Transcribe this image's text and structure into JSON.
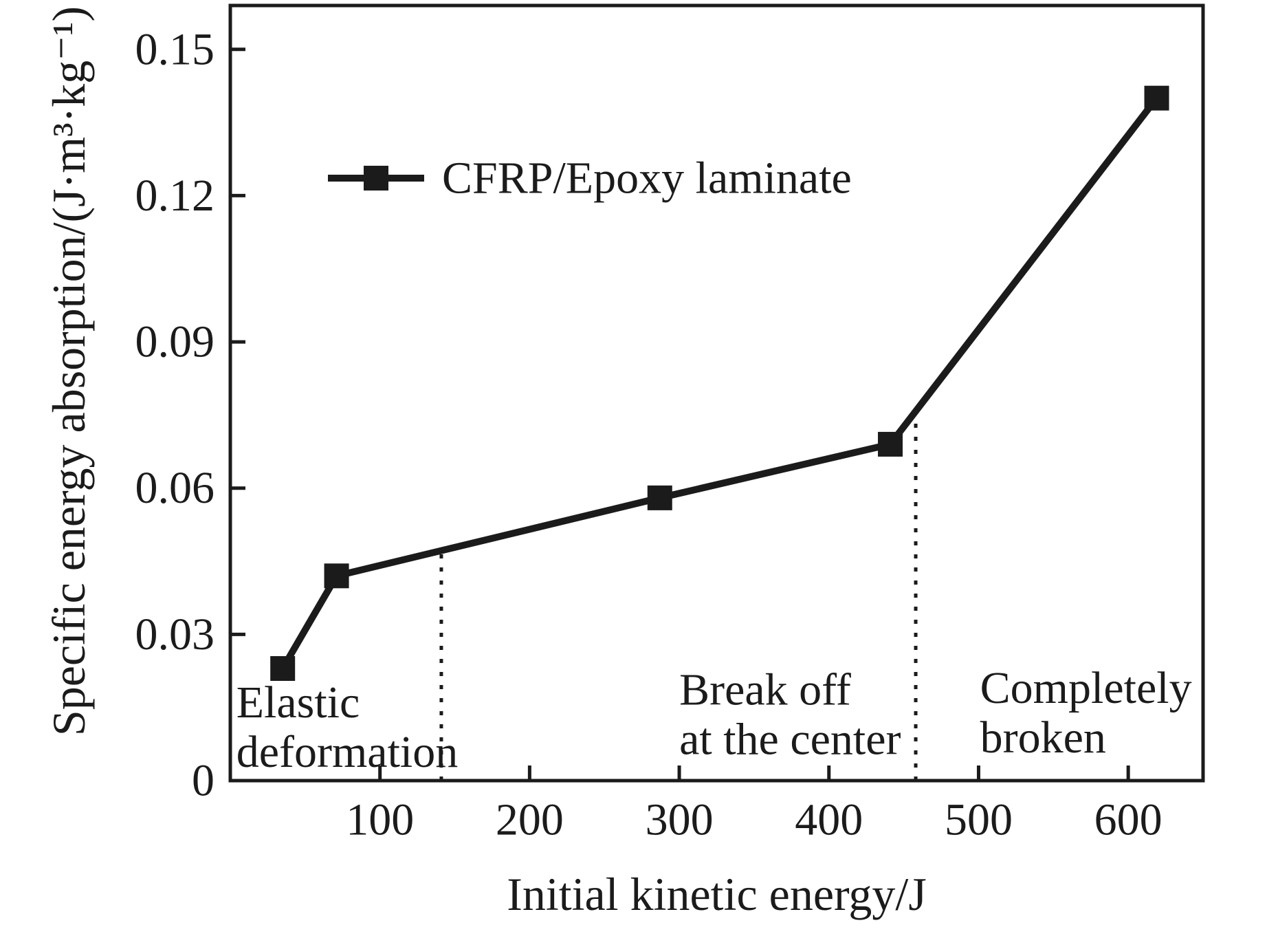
{
  "figure": {
    "kind": "scientific-line-chart",
    "background": "#ffffff"
  },
  "colors": {
    "ink": "#1b1b1b",
    "background": "#ffffff"
  },
  "chart_data": {
    "type": "line",
    "title": "",
    "xlabel": "Initial kinetic energy/J",
    "ylabel": "Specific energy absorption/(J·m³·kg⁻¹)",
    "xlim": [
      0,
      650
    ],
    "ylim": [
      0,
      0.159
    ],
    "x_ticks": [
      100,
      200,
      300,
      400,
      500,
      600
    ],
    "x_tick_labels": [
      "100",
      "200",
      "300",
      "400",
      "500",
      "600"
    ],
    "y_ticks": [
      0,
      0.03,
      0.06,
      0.09,
      0.12,
      0.15
    ],
    "y_tick_labels": [
      "0",
      "0.03",
      "0.06",
      "0.09",
      "0.12",
      "0.15"
    ],
    "grid": false,
    "frame": "full-box",
    "legend_position": "upper-left-inside",
    "series": [
      {
        "name": "CFRP/Epoxy laminate",
        "marker": "filled-square",
        "line_style": "solid",
        "color": "#1b1b1b",
        "points": [
          {
            "x": 35,
            "y": 0.023
          },
          {
            "x": 71,
            "y": 0.042
          },
          {
            "x": 287,
            "y": 0.058
          },
          {
            "x": 441,
            "y": 0.069
          },
          {
            "x": 619,
            "y": 0.14
          }
        ]
      }
    ],
    "region_dividers": [
      {
        "x": 141,
        "style": "dotted",
        "from_y": 0,
        "to_y": 0.047
      },
      {
        "x": 458,
        "style": "dotted",
        "from_y": 0,
        "to_y": 0.075
      }
    ],
    "annotations": [
      {
        "lines": [
          "Elastic",
          "deformation"
        ],
        "x": 4,
        "y": 0.016,
        "align": "start"
      },
      {
        "lines": [
          "Break off",
          "at the center"
        ],
        "x": 300,
        "y": 0.0186,
        "align": "start"
      },
      {
        "lines": [
          "Completely",
          "broken"
        ],
        "x": 501,
        "y": 0.019,
        "align": "start"
      }
    ]
  }
}
